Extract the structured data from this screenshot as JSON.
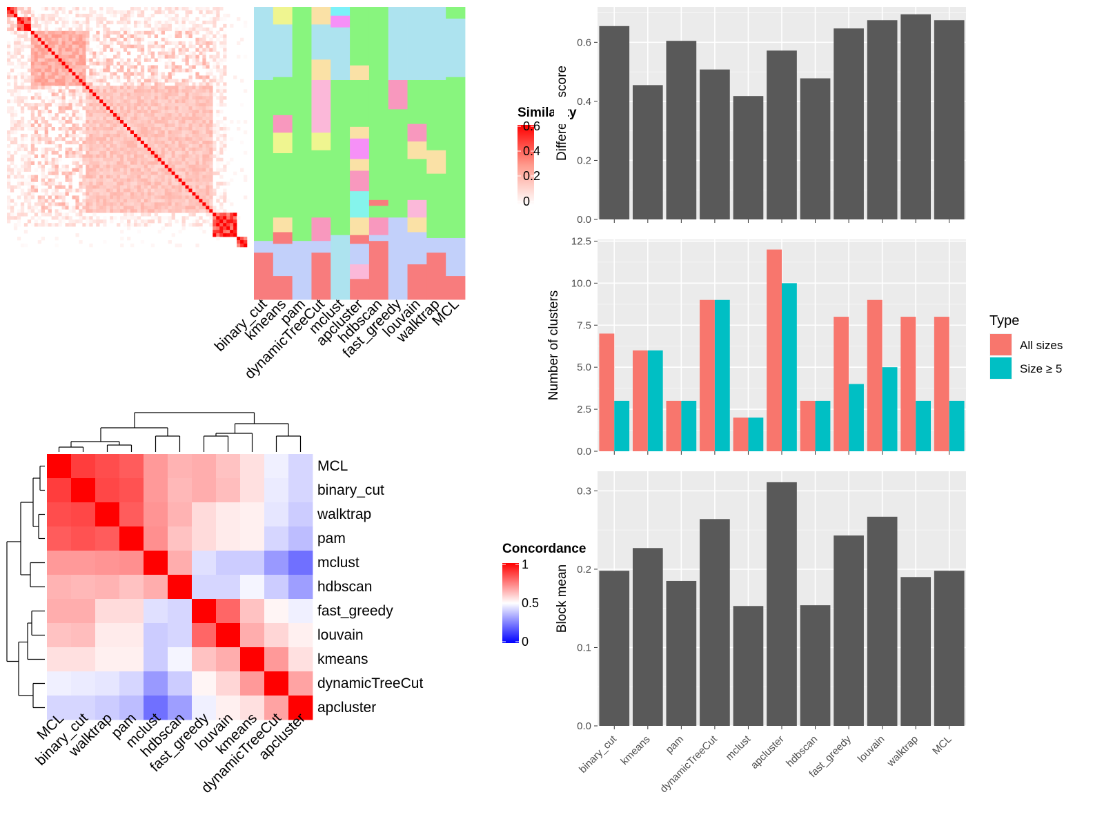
{
  "method_order": [
    "binary_cut",
    "kmeans",
    "pam",
    "dynamicTreeCut",
    "mclust",
    "apcluster",
    "hdbscan",
    "fast_greedy",
    "louvain",
    "walktrap",
    "MCL"
  ],
  "cluster_palette": [
    "#ADE3EF",
    "#88F57E",
    "#F898BE",
    "#FBB8D9",
    "#EFF590",
    "#FAE1A6",
    "#85F4EC",
    "#F690F7",
    "#C2D0FA",
    "#F87C7D",
    "#7CF1F8"
  ],
  "similarity_legend": {
    "title": "Similarity",
    "ticks": [
      "0.6",
      "0.4",
      "0.2",
      "0"
    ]
  },
  "concordance_legend": {
    "title": "Concordance",
    "ticks": [
      "1",
      "0.5",
      "0"
    ]
  },
  "concordance_order": [
    "MCL",
    "binary_cut",
    "walktrap",
    "pam",
    "mclust",
    "hdbscan",
    "fast_greedy",
    "louvain",
    "kmeans",
    "dynamicTreeCut",
    "apcluster"
  ],
  "chart_data": [
    {
      "type": "heatmap",
      "name": "similarity-matrix",
      "n": 70,
      "blocks": [
        {
          "start": 0,
          "end": 3,
          "level": 0.55
        },
        {
          "start": 3,
          "end": 7,
          "level": 0.62
        },
        {
          "start": 7,
          "end": 23,
          "level": 0.3
        },
        {
          "start": 23,
          "end": 60,
          "level": 0.22
        },
        {
          "start": 60,
          "end": 67,
          "level": 0.65
        },
        {
          "start": 67,
          "end": 70,
          "level": 0.6
        }
      ]
    },
    {
      "type": "heatmap",
      "name": "cluster-assignment",
      "columns": [
        "binary_cut",
        "kmeans",
        "pam",
        "dynamicTreeCut",
        "mclust",
        "apcluster",
        "hdbscan",
        "fast_greedy",
        "louvain",
        "walktrap",
        "MCL"
      ],
      "segments": [
        [
          [
            0,
            25,
            0
          ],
          [
            25,
            80,
            1
          ],
          [
            80,
            84,
            8
          ],
          [
            84,
            100,
            9
          ]
        ],
        [
          [
            0,
            6,
            4
          ],
          [
            6,
            24,
            0
          ],
          [
            24,
            37,
            1
          ],
          [
            37,
            43,
            2
          ],
          [
            43,
            50,
            4
          ],
          [
            50,
            72,
            1
          ],
          [
            72,
            77,
            5
          ],
          [
            77,
            81,
            9
          ],
          [
            81,
            92,
            8
          ],
          [
            92,
            100,
            9
          ]
        ],
        [
          [
            0,
            80,
            1
          ],
          [
            80,
            84,
            8
          ],
          [
            84,
            93,
            8
          ],
          [
            93,
            100,
            8
          ]
        ],
        [
          [
            0,
            6,
            5
          ],
          [
            6,
            18,
            0
          ],
          [
            18,
            25,
            5
          ],
          [
            25,
            43,
            3
          ],
          [
            43,
            49,
            4
          ],
          [
            49,
            72,
            1
          ],
          [
            72,
            80,
            2
          ],
          [
            80,
            84,
            8
          ],
          [
            84,
            100,
            9
          ]
        ],
        [
          [
            0,
            3,
            10
          ],
          [
            3,
            7,
            7
          ],
          [
            7,
            25,
            0
          ],
          [
            25,
            78,
            1
          ],
          [
            78,
            100,
            0
          ]
        ],
        [
          [
            0,
            20,
            1
          ],
          [
            20,
            25,
            5
          ],
          [
            25,
            41,
            1
          ],
          [
            41,
            45,
            5
          ],
          [
            45,
            52,
            7
          ],
          [
            52,
            56,
            5
          ],
          [
            56,
            63,
            2
          ],
          [
            63,
            72,
            6
          ],
          [
            72,
            78,
            5
          ],
          [
            78,
            81,
            9
          ],
          [
            81,
            88,
            8
          ],
          [
            88,
            93,
            3
          ],
          [
            93,
            100,
            9
          ]
        ],
        [
          [
            0,
            66,
            1
          ],
          [
            66,
            68,
            9
          ],
          [
            68,
            72,
            1
          ],
          [
            72,
            78,
            2
          ],
          [
            78,
            80,
            8
          ],
          [
            80,
            100,
            9
          ]
        ],
        [
          [
            0,
            25,
            0
          ],
          [
            25,
            35,
            2
          ],
          [
            35,
            46,
            1
          ],
          [
            46,
            72,
            1
          ],
          [
            72,
            100,
            8
          ]
        ],
        [
          [
            0,
            25,
            0
          ],
          [
            25,
            40,
            1
          ],
          [
            40,
            46,
            2
          ],
          [
            46,
            52,
            5
          ],
          [
            52,
            66,
            1
          ],
          [
            66,
            72,
            3
          ],
          [
            72,
            77,
            5
          ],
          [
            77,
            88,
            8
          ],
          [
            88,
            100,
            9
          ]
        ],
        [
          [
            0,
            25,
            0
          ],
          [
            25,
            49,
            1
          ],
          [
            49,
            57,
            5
          ],
          [
            57,
            79,
            1
          ],
          [
            79,
            84,
            8
          ],
          [
            84,
            100,
            9
          ]
        ],
        [
          [
            0,
            4,
            1
          ],
          [
            4,
            24,
            0
          ],
          [
            24,
            79,
            1
          ],
          [
            79,
            84,
            8
          ],
          [
            84,
            92,
            8
          ],
          [
            92,
            100,
            9
          ]
        ]
      ]
    },
    {
      "type": "heatmap",
      "name": "concordance-matrix",
      "rows": [
        "MCL",
        "binary_cut",
        "walktrap",
        "pam",
        "mclust",
        "hdbscan",
        "fast_greedy",
        "louvain",
        "kmeans",
        "dynamicTreeCut",
        "apcluster"
      ],
      "columns": [
        "MCL",
        "binary_cut",
        "walktrap",
        "pam",
        "mclust",
        "hdbscan",
        "fast_greedy",
        "louvain",
        "kmeans",
        "dynamicTreeCut",
        "apcluster"
      ],
      "values": [
        [
          1.0,
          0.88,
          0.85,
          0.82,
          0.7,
          0.65,
          0.66,
          0.62,
          0.56,
          0.47,
          0.42
        ],
        [
          0.88,
          1.0,
          0.86,
          0.84,
          0.7,
          0.64,
          0.66,
          0.63,
          0.56,
          0.46,
          0.42
        ],
        [
          0.85,
          0.86,
          1.0,
          0.82,
          0.71,
          0.65,
          0.57,
          0.54,
          0.53,
          0.45,
          0.4
        ],
        [
          0.82,
          0.84,
          0.82,
          1.0,
          0.72,
          0.62,
          0.57,
          0.54,
          0.53,
          0.42,
          0.37
        ],
        [
          0.7,
          0.7,
          0.71,
          0.72,
          1.0,
          0.66,
          0.44,
          0.4,
          0.4,
          0.3,
          0.22
        ],
        [
          0.65,
          0.64,
          0.65,
          0.62,
          0.66,
          1.0,
          0.42,
          0.42,
          0.48,
          0.4,
          0.31
        ],
        [
          0.66,
          0.66,
          0.57,
          0.57,
          0.44,
          0.42,
          1.0,
          0.8,
          0.62,
          0.52,
          0.47
        ],
        [
          0.62,
          0.63,
          0.54,
          0.54,
          0.4,
          0.42,
          0.8,
          1.0,
          0.66,
          0.58,
          0.53
        ],
        [
          0.56,
          0.56,
          0.53,
          0.53,
          0.4,
          0.48,
          0.62,
          0.66,
          1.0,
          0.7,
          0.56
        ],
        [
          0.47,
          0.46,
          0.45,
          0.42,
          0.3,
          0.4,
          0.52,
          0.58,
          0.7,
          1.0,
          0.68
        ],
        [
          0.42,
          0.42,
          0.4,
          0.37,
          0.22,
          0.31,
          0.47,
          0.53,
          0.56,
          0.68,
          1.0
        ]
      ],
      "range": [
        0,
        1
      ]
    },
    {
      "type": "bar",
      "name": "difference-score",
      "categories": [
        "binary_cut",
        "kmeans",
        "pam",
        "dynamicTreeCut",
        "mclust",
        "apcluster",
        "hdbscan",
        "fast_greedy",
        "louvain",
        "walktrap",
        "MCL"
      ],
      "values": [
        0.655,
        0.455,
        0.605,
        0.508,
        0.418,
        0.572,
        0.478,
        0.647,
        0.675,
        0.695,
        0.675
      ],
      "ylabel": "Difference score",
      "ylim": [
        0,
        0.72
      ],
      "yticks": [
        "0.0",
        "0.2",
        "0.4",
        "0.6"
      ],
      "ytick_values": [
        0,
        0.2,
        0.4,
        0.6
      ],
      "grid": true
    },
    {
      "type": "bar",
      "name": "number-of-clusters",
      "categories": [
        "binary_cut",
        "kmeans",
        "pam",
        "dynamicTreeCut",
        "mclust",
        "apcluster",
        "hdbscan",
        "fast_greedy",
        "louvain",
        "walktrap",
        "MCL"
      ],
      "series": [
        {
          "name": "All sizes",
          "color": "#F8766D",
          "values": [
            7,
            6,
            3,
            9,
            2,
            12,
            3,
            8,
            9,
            8,
            8
          ]
        },
        {
          "name": "Size ≥ 5",
          "color": "#00BFC4",
          "values": [
            3,
            6,
            3,
            9,
            2,
            10,
            3,
            4,
            5,
            3,
            3
          ]
        }
      ],
      "ylabel": "Number of clusters",
      "ylim": [
        0,
        12.6
      ],
      "yticks": [
        "0.0",
        "2.5",
        "5.0",
        "7.5",
        "10.0",
        "12.5"
      ],
      "ytick_values": [
        0,
        2.5,
        5,
        7.5,
        10,
        12.5
      ],
      "legend": {
        "title": "Type",
        "placement": "right"
      },
      "grid": true
    },
    {
      "type": "bar",
      "name": "block-mean",
      "categories": [
        "binary_cut",
        "kmeans",
        "pam",
        "dynamicTreeCut",
        "mclust",
        "apcluster",
        "hdbscan",
        "fast_greedy",
        "louvain",
        "walktrap",
        "MCL"
      ],
      "values": [
        0.198,
        0.227,
        0.185,
        0.264,
        0.153,
        0.311,
        0.154,
        0.243,
        0.267,
        0.19,
        0.198
      ],
      "ylabel": "Block mean",
      "ylim": [
        0,
        0.325
      ],
      "yticks": [
        "0.0",
        "0.1",
        "0.2",
        "0.3"
      ],
      "ytick_values": [
        0,
        0.1,
        0.2,
        0.3
      ],
      "grid": true
    }
  ]
}
